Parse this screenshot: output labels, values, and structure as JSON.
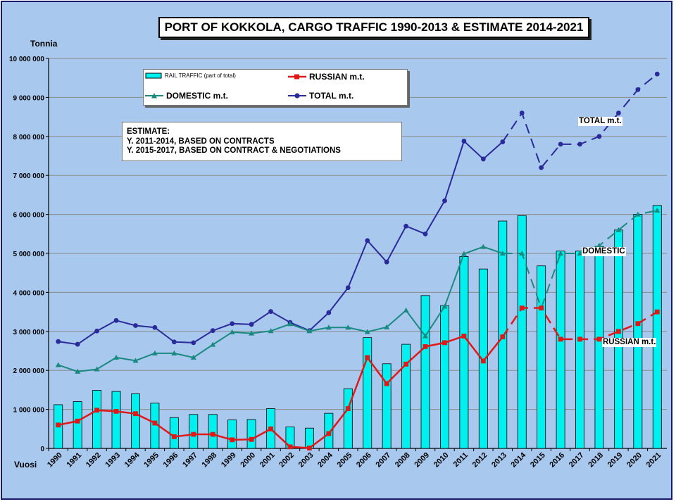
{
  "title": "PORT OF KOKKOLA, CARGO TRAFFIC 1990-2013 & ESTIMATE 2014-2021",
  "y_unit_label": "Tonnia",
  "x_unit_label": "Vuosi",
  "legend": {
    "rail": "RAIL TRAFFIC (part of total)",
    "russian": "RUSSIAN m.t.",
    "domestic": "DOMESTIC m.t.",
    "total": "TOTAL m.t."
  },
  "estimate_note": {
    "line1": "ESTIMATE:",
    "line2": "Y. 2011-2014, BASED ON CONTRACTS",
    "line3": "Y. 2015-2017, BASED ON CONTRACT & NEGOTIATIONS"
  },
  "series_labels": {
    "total": "TOTAL m.t.",
    "domestic": "DOMESTIC",
    "russian": "RUSSIAN m.t."
  },
  "colors": {
    "background": "#a8c8ee",
    "rail": "#00f0f0",
    "russian": "#e01818",
    "domestic": "#1a8a80",
    "total": "#2a2a9a",
    "frame": "#1a1a6a"
  },
  "chart_data": {
    "type": "bar+line",
    "title": "PORT OF KOKKOLA, CARGO TRAFFIC 1990-2013 & ESTIMATE 2014-2021",
    "ylabel": "Tonnia",
    "xlabel": "Vuosi",
    "ylim": [
      0,
      10000000
    ],
    "y_ticks": [
      0,
      1000000,
      2000000,
      3000000,
      4000000,
      5000000,
      6000000,
      7000000,
      8000000,
      9000000,
      10000000
    ],
    "y_tick_labels": [
      "0",
      "1 000 000",
      "2 000 000",
      "3 000 000",
      "4 000 000",
      "5 000 000",
      "6 000 000",
      "7 000 000",
      "8 000 000",
      "9 000 000",
      "10 000 000"
    ],
    "grid": true,
    "legend_position": "top-left",
    "categories": [
      "1990",
      "1991",
      "1992",
      "1993",
      "1994",
      "1995",
      "1996",
      "1997",
      "1998",
      "1999",
      "2000",
      "2001",
      "2002",
      "2003",
      "2004",
      "2005",
      "2006",
      "2007",
      "2008",
      "2009",
      "2010",
      "2011",
      "2012",
      "2013",
      "2014",
      "2015",
      "2016",
      "2017",
      "2018",
      "2019",
      "2020",
      "2021"
    ],
    "estimate_start_index": 24,
    "series": [
      {
        "name": "RAIL TRAFFIC (part of total)",
        "key": "rail",
        "kind": "bar",
        "values": [
          1120000,
          1200000,
          1490000,
          1460000,
          1400000,
          1160000,
          790000,
          870000,
          870000,
          730000,
          740000,
          1020000,
          550000,
          520000,
          900000,
          1530000,
          2840000,
          2170000,
          2670000,
          3920000,
          3660000,
          4920000,
          4600000,
          5830000,
          5970000,
          4680000,
          5060000,
          5060000,
          5180000,
          5600000,
          6000000,
          6230000
        ]
      },
      {
        "name": "TOTAL m.t.",
        "key": "total",
        "kind": "line",
        "values": [
          2740000,
          2670000,
          3010000,
          3280000,
          3150000,
          3100000,
          2730000,
          2710000,
          3020000,
          3200000,
          3180000,
          3510000,
          3230000,
          3020000,
          3480000,
          4120000,
          5330000,
          4780000,
          5700000,
          5500000,
          6350000,
          7880000,
          7420000,
          7860000,
          8600000,
          7200000,
          7800000,
          7800000,
          8000000,
          8600000,
          9200000,
          9600000
        ]
      },
      {
        "name": "DOMESTIC m.t.",
        "key": "domestic",
        "kind": "line",
        "values": [
          2140000,
          1970000,
          2030000,
          2330000,
          2250000,
          2440000,
          2440000,
          2330000,
          2660000,
          2980000,
          2950000,
          3010000,
          3190000,
          3010000,
          3100000,
          3100000,
          2990000,
          3110000,
          3540000,
          2880000,
          3640000,
          4990000,
          5170000,
          5000000,
          5000000,
          3600000,
          5000000,
          5000000,
          5200000,
          5600000,
          6000000,
          6100000
        ]
      },
      {
        "name": "RUSSIAN m.t.",
        "key": "russian",
        "kind": "line",
        "values": [
          600000,
          700000,
          980000,
          950000,
          890000,
          650000,
          300000,
          360000,
          360000,
          220000,
          230000,
          500000,
          40000,
          10000,
          380000,
          1020000,
          2330000,
          1660000,
          2160000,
          2610000,
          2710000,
          2880000,
          2240000,
          2860000,
          3600000,
          3600000,
          2800000,
          2800000,
          2800000,
          3000000,
          3200000,
          3500000
        ]
      }
    ]
  }
}
